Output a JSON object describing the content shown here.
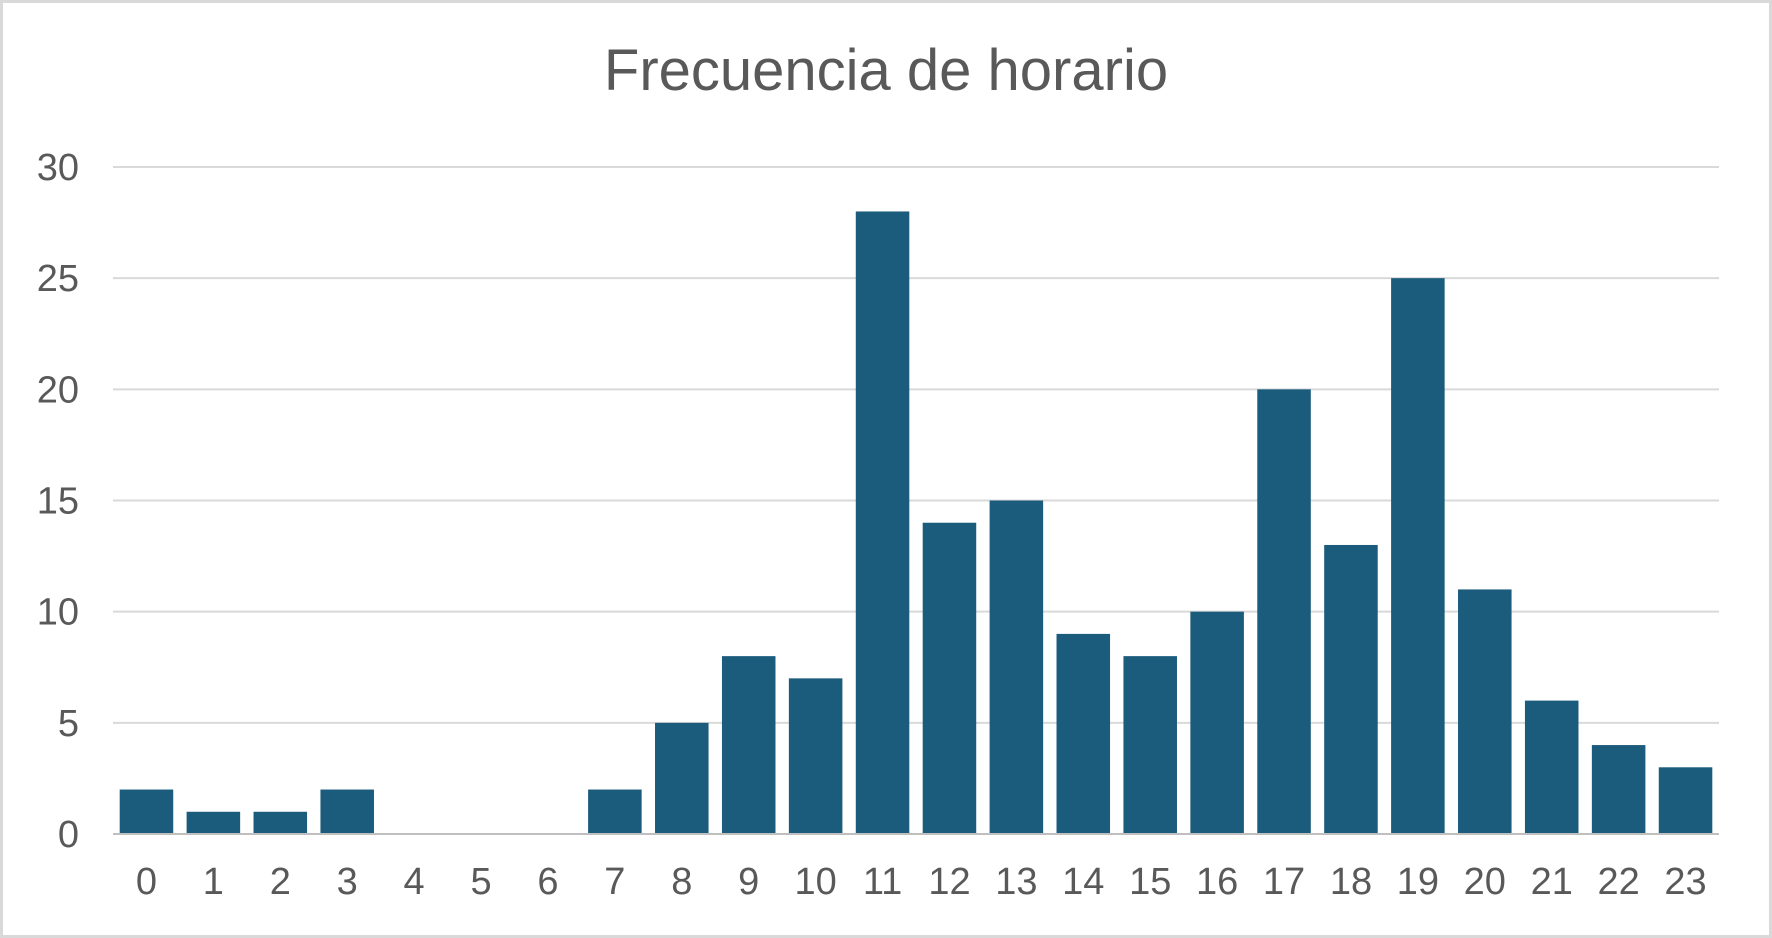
{
  "chart_data": {
    "type": "bar",
    "title": "Frecuencia de horario",
    "xlabel": "",
    "ylabel": "",
    "categories": [
      "0",
      "1",
      "2",
      "3",
      "4",
      "5",
      "6",
      "7",
      "8",
      "9",
      "10",
      "11",
      "12",
      "13",
      "14",
      "15",
      "16",
      "17",
      "18",
      "19",
      "20",
      "21",
      "22",
      "23"
    ],
    "values": [
      2,
      1,
      1,
      2,
      0,
      0,
      0,
      2,
      5,
      8,
      7,
      28,
      14,
      15,
      9,
      8,
      10,
      20,
      13,
      25,
      11,
      6,
      4,
      3
    ],
    "ylim": [
      0,
      30
    ],
    "yticks": [
      0,
      5,
      10,
      15,
      20,
      25,
      30
    ],
    "grid": true,
    "legend": "none",
    "colors": {
      "bar": "#1b5b7c",
      "grid": "#d9d9d9",
      "axis": "#bfbfbf"
    }
  }
}
